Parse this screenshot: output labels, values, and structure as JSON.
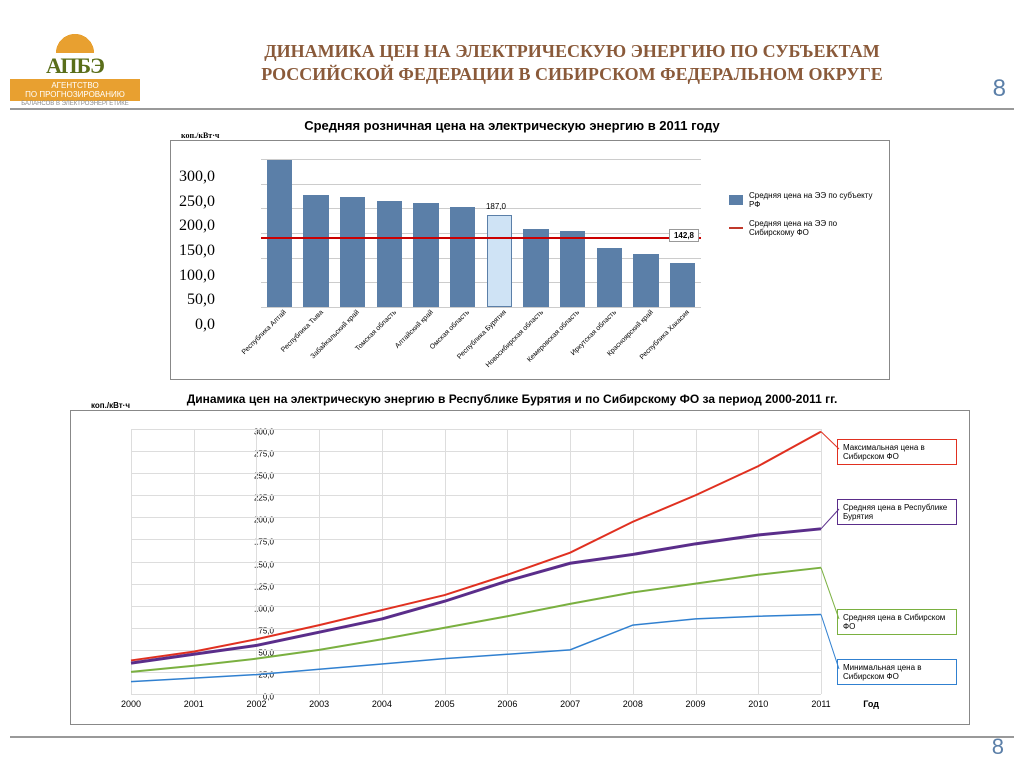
{
  "logo": {
    "brand": "АПБЭ",
    "line1": "АГЕНТСТВО",
    "line2": "ПО ПРОГНОЗИРОВАНИЮ",
    "line3": "БАЛАНСОВ В ЭЛЕКТРОЭНЕРГЕТИКЕ"
  },
  "page_number_top": "8",
  "page_number_bottom": "8",
  "main_title_l1": "Динамика цен на электрическую энергию по субъектам",
  "main_title_l2": "Российской Федерации в Сибирском федеральном округе",
  "bar_chart": {
    "title": "Средняя розничная цена на электрическую энергию в 2011 году",
    "ylabel": "коп./кВт·ч",
    "ylim": [
      0,
      300
    ],
    "ytick_step": 50,
    "yticks": [
      "0,0",
      "50,0",
      "100,0",
      "150,0",
      "200,0",
      "250,0",
      "300,0"
    ],
    "categories": [
      "Республика Алтай",
      "Республика Тыва",
      "Забайкальский край",
      "Томская область",
      "Алтайский край",
      "Омская область",
      "Республика Бурятия",
      "Новосибирская область",
      "Кемеровская область",
      "Иркутская область",
      "Красноярский край",
      "Республика Хакасия"
    ],
    "values": [
      297,
      228,
      222,
      215,
      210,
      203,
      187,
      158,
      155,
      120,
      108,
      90
    ],
    "bar_color": "#5b7fa8",
    "highlight_index": 6,
    "highlight_color": "#cfe3f5",
    "highlight_border": "#5b7fa8",
    "highlight_label": "187,0",
    "avg_line_value": 142.8,
    "avg_line_label": "142,8",
    "avg_line_color": "#c0392b",
    "legend": [
      {
        "type": "box",
        "color": "#5b7fa8",
        "label": "Средняя цена на ЭЭ по субъекту РФ"
      },
      {
        "type": "line",
        "color": "#c0392b",
        "label": "Средняя цена на ЭЭ по Сибирскому ФО"
      }
    ],
    "background_color": "#ffffff",
    "grid_color": "#cccccc",
    "border_color": "#888888",
    "label_fontsize": 8
  },
  "line_chart": {
    "title": "Динамика цен на электрическую энергию в Республике Бурятия и по Сибирскому ФО за период 2000-2011 гг.",
    "ylabel": "коп./кВт·ч",
    "xlabel": "Год",
    "ylim": [
      0,
      300
    ],
    "ytick_step": 25,
    "yticks": [
      "0,0",
      "25,0",
      "50,0",
      "75,0",
      "100,0",
      "125,0",
      "150,0",
      "175,0",
      "200,0",
      "225,0",
      "250,0",
      "275,0",
      "300,0"
    ],
    "years": [
      2000,
      2001,
      2002,
      2003,
      2004,
      2005,
      2006,
      2007,
      2008,
      2009,
      2010,
      2011
    ],
    "series": {
      "max": {
        "color": "#e03020",
        "width": 2,
        "label": "Максимальная цена в Сибирском ФО",
        "values": [
          38,
          48,
          62,
          78,
          95,
          112,
          135,
          160,
          195,
          225,
          258,
          297
        ]
      },
      "buryat": {
        "color": "#5a2d8a",
        "width": 3,
        "label": "Средняя цена в Республике Бурятия",
        "values": [
          35,
          45,
          55,
          70,
          85,
          105,
          128,
          148,
          158,
          170,
          180,
          187
        ]
      },
      "avg": {
        "color": "#7ab040",
        "width": 2,
        "label": "Средняя цена в Сибирском ФО",
        "values": [
          25,
          32,
          40,
          50,
          62,
          75,
          88,
          102,
          115,
          125,
          135,
          143
        ]
      },
      "min": {
        "color": "#3080d0",
        "width": 1.5,
        "label": "Минимальная цена в Сибирском ФО",
        "values": [
          14,
          18,
          22,
          28,
          34,
          40,
          45,
          50,
          78,
          85,
          88,
          90
        ]
      }
    },
    "legend_boxes": [
      {
        "key": "max",
        "top": 28,
        "border": "#e03020"
      },
      {
        "key": "buryat",
        "top": 88,
        "border": "#5a2d8a"
      },
      {
        "key": "avg",
        "top": 198,
        "border": "#7ab040"
      },
      {
        "key": "min",
        "top": 248,
        "border": "#3080d0"
      }
    ],
    "background_color": "#ffffff",
    "grid_color": "#dddddd",
    "border_color": "#888888",
    "marker_style": "none"
  }
}
